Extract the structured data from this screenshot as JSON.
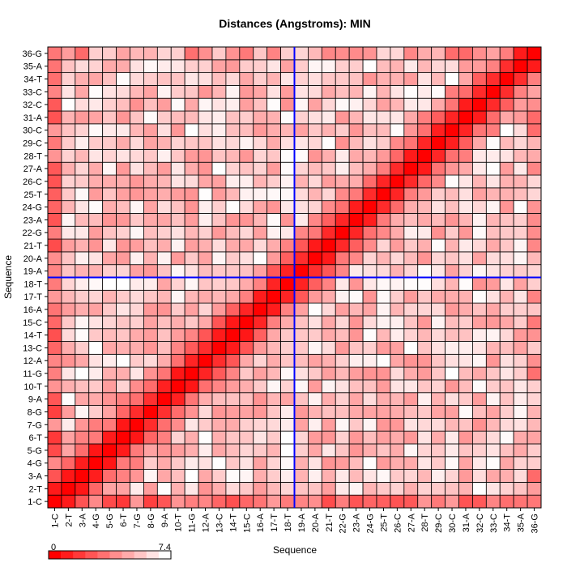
{
  "chart_data": {
    "type": "heatmap",
    "title": "Distances (Angstroms):  MIN",
    "xlabel": "Sequence",
    "ylabel": "Sequence",
    "labels": [
      "1-C",
      "2-T",
      "3-A",
      "4-G",
      "5-G",
      "6-T",
      "7-G",
      "8-G",
      "9-A",
      "10-T",
      "11-G",
      "12-A",
      "13-C",
      "14-T",
      "15-C",
      "16-A",
      "17-T",
      "18-T",
      "19-A",
      "20-A",
      "21-T",
      "22-G",
      "23-A",
      "24-G",
      "25-T",
      "26-C",
      "27-A",
      "28-T",
      "29-C",
      "30-C",
      "31-A",
      "32-C",
      "33-C",
      "34-T",
      "35-A",
      "36-G"
    ],
    "color_scale": {
      "min_label": "0",
      "max_label": "7.4",
      "min_value": 0,
      "max_value": 7.4,
      "low_color": "#ff0000",
      "high_color": "#ffffff"
    },
    "highlight_index": 18,
    "highlight_color": "#0000ff",
    "grid": true,
    "description_of_values": "Minimum inter-residue distance; diagonal and near-diagonal cells are 0 (saturated red), increasing toward white (7.4). Cells off the diagonal shown as pale pink at roughly 5-7 Angstroms."
  }
}
